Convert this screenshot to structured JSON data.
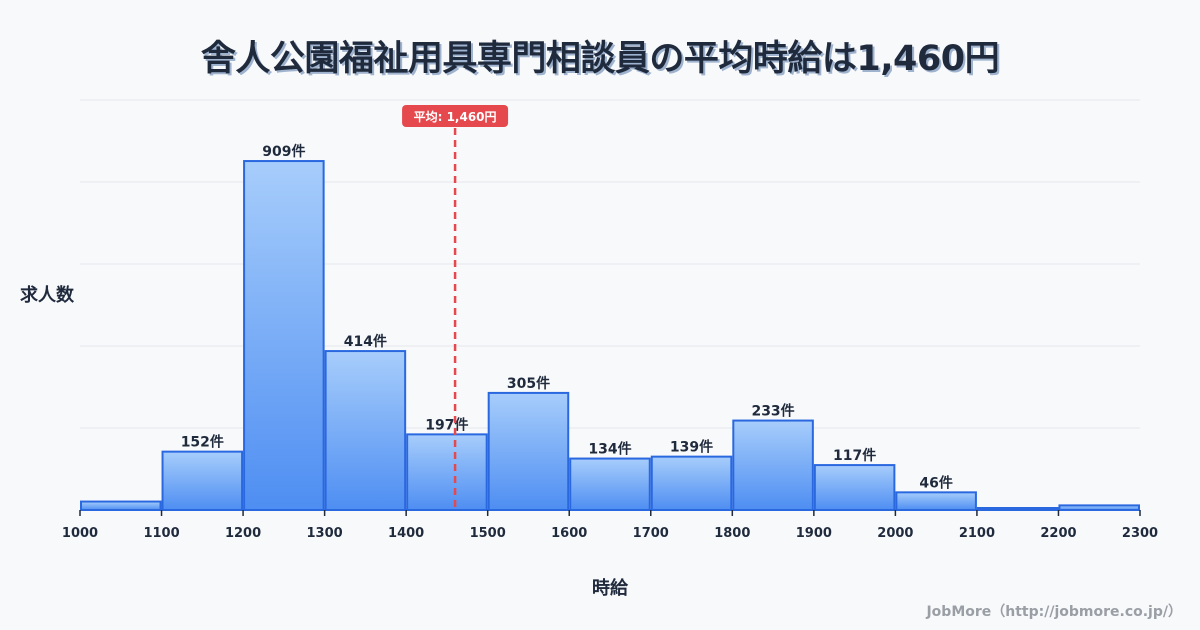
{
  "title": "舎人公園福祉用具専門相談員の平均時給は1,460円",
  "ylabel": "求人数",
  "xlabel": "時給",
  "footer": "JobMore（http://jobmore.co.jp/）",
  "mean": {
    "value": 1460,
    "label": "平均: 1,460円",
    "color": "#e5484d"
  },
  "colors": {
    "bar_top": "#a7cdfb",
    "bar_bottom": "#4e8ef2",
    "bar_border": "#2a68e0",
    "grid": "#e3e6ec",
    "text": "#1f2a3c"
  },
  "chart_data": {
    "type": "bar",
    "title": "舎人公園福祉用具専門相談員の平均時給は1,460円",
    "xlabel": "時給",
    "ylabel": "求人数",
    "bin_edges": [
      1000,
      1100,
      1200,
      1300,
      1400,
      1500,
      1600,
      1700,
      1800,
      1900,
      2000,
      2100,
      2200,
      2300
    ],
    "categories": [
      "1000-1100",
      "1100-1200",
      "1200-1300",
      "1300-1400",
      "1400-1500",
      "1500-1600",
      "1600-1700",
      "1700-1800",
      "1800-1900",
      "1900-2000",
      "2000-2100",
      "2100-2200",
      "2200-2300"
    ],
    "values": [
      22,
      152,
      909,
      414,
      197,
      305,
      134,
      139,
      233,
      117,
      46,
      5,
      12
    ],
    "labels": [
      "",
      "152件",
      "909件",
      "414件",
      "197件",
      "305件",
      "134件",
      "139件",
      "233件",
      "117件",
      "46件",
      "",
      ""
    ],
    "xticks": [
      "1000",
      "1100",
      "1200",
      "1300",
      "1400",
      "1500",
      "1600",
      "1700",
      "1800",
      "1900",
      "2000",
      "2100",
      "2200",
      "2300"
    ],
    "xlim": [
      1000,
      2300
    ],
    "ylim": [
      0,
      1068
    ],
    "grid": true,
    "mean_line": 1460,
    "legend": "none"
  }
}
